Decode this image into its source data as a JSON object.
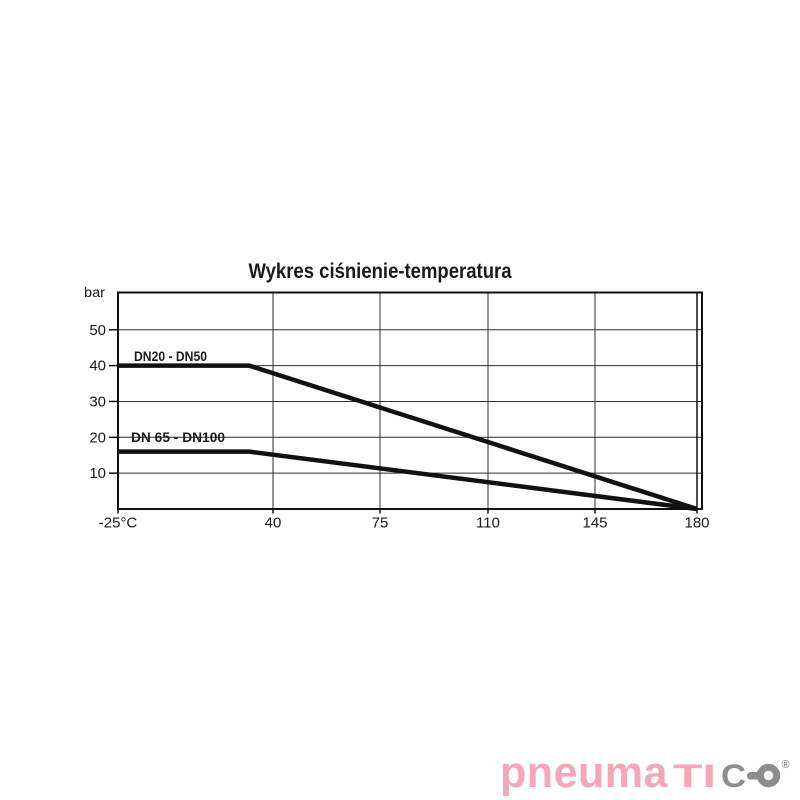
{
  "chart_data": {
    "type": "line",
    "title": "Wykres ciśnienie-temperatura",
    "y_axis_unit": "bar",
    "xlabel": "",
    "ylabel": "bar",
    "xlim": [
      -25,
      180
    ],
    "ylim": [
      0,
      60
    ],
    "grid": true,
    "legend_position": "inline-labels",
    "x_ticks": [
      {
        "value": -25,
        "label": "-25°C"
      },
      {
        "value": 40,
        "label": "40"
      },
      {
        "value": 75,
        "label": "75"
      },
      {
        "value": 110,
        "label": "110"
      },
      {
        "value": 145,
        "label": "145"
      },
      {
        "value": 180,
        "label": "180"
      }
    ],
    "y_ticks": [
      {
        "value": 50,
        "label": "50"
      },
      {
        "value": 40,
        "label": "40"
      },
      {
        "value": 30,
        "label": "30"
      },
      {
        "value": 20,
        "label": "20"
      },
      {
        "value": 10,
        "label": "10"
      }
    ],
    "series": [
      {
        "name": "DN20 - DN50",
        "color": "#111111",
        "points": [
          {
            "x": -25,
            "y": 40
          },
          {
            "x": 30,
            "y": 40
          },
          {
            "x": 180,
            "y": 0
          }
        ]
      },
      {
        "name": "DN 65 - DN100",
        "color": "#111111",
        "points": [
          {
            "x": -25,
            "y": 16
          },
          {
            "x": 30,
            "y": 16
          },
          {
            "x": 180,
            "y": 0
          }
        ]
      }
    ]
  },
  "logo": {
    "full_text": "pneumatico®",
    "part_lower_pink": "pneuma",
    "part_caps_pink": "TI",
    "part_caps_gray": "C",
    "part_o_gray": "O",
    "registered_mark": "®",
    "pink_color": "#f5a6b8",
    "gray_color": "#8d8d8d"
  }
}
